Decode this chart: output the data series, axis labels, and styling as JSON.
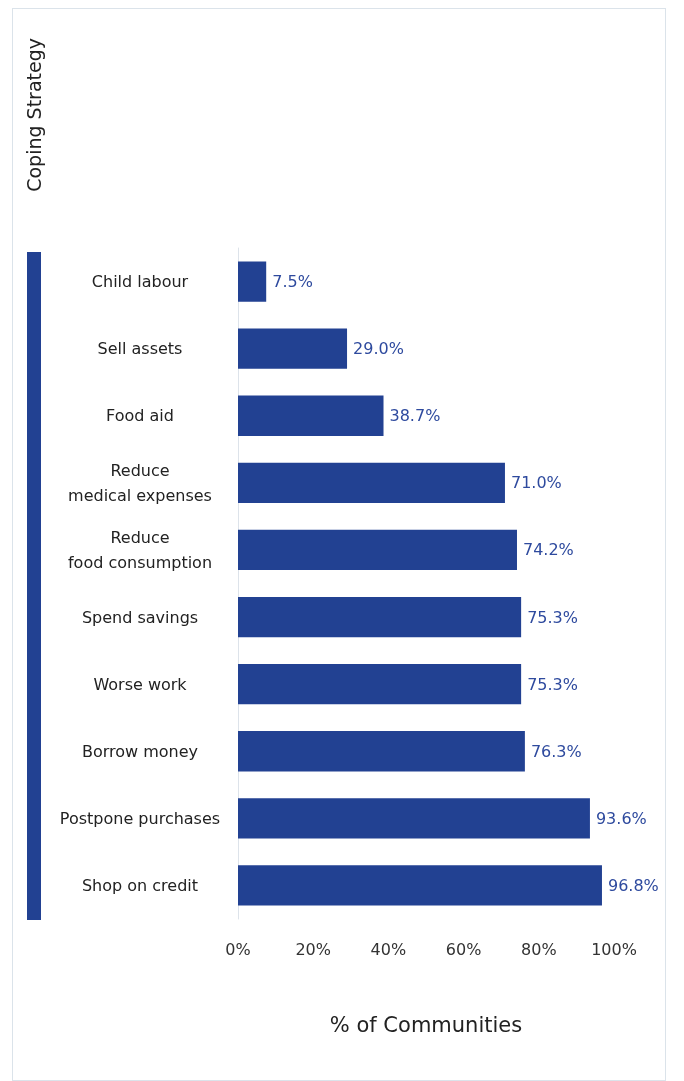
{
  "chart_data": {
    "type": "bar",
    "orientation": "horizontal",
    "xlabel": "% of Communities",
    "ylabel": "Coping Strategy",
    "categories": [
      "Child labour",
      "Sell assets",
      "Food aid",
      "Reduce\nmedical expenses",
      "Reduce\nfood consumption",
      "Spend savings",
      "Worse work",
      "Borrow money",
      "Postpone purchases",
      "Shop on credit"
    ],
    "values": [
      7.5,
      29.0,
      38.7,
      71.0,
      74.2,
      75.3,
      75.3,
      76.3,
      93.6,
      96.8
    ],
    "value_labels": [
      "7.5%",
      "29.0%",
      "38.7%",
      "71.0%",
      "74.2%",
      "75.3%",
      "75.3%",
      "76.3%",
      "93.6%",
      "96.8%"
    ],
    "color": "#224192",
    "xlim": [
      0,
      100
    ],
    "xticks": [
      {
        "value": 0,
        "label": "0%"
      },
      {
        "value": 20,
        "label": "20%"
      },
      {
        "value": 40,
        "label": "40%"
      },
      {
        "value": 60,
        "label": "60%"
      },
      {
        "value": 80,
        "label": "80%"
      },
      {
        "value": 100,
        "label": "100%"
      }
    ],
    "grid": false
  }
}
